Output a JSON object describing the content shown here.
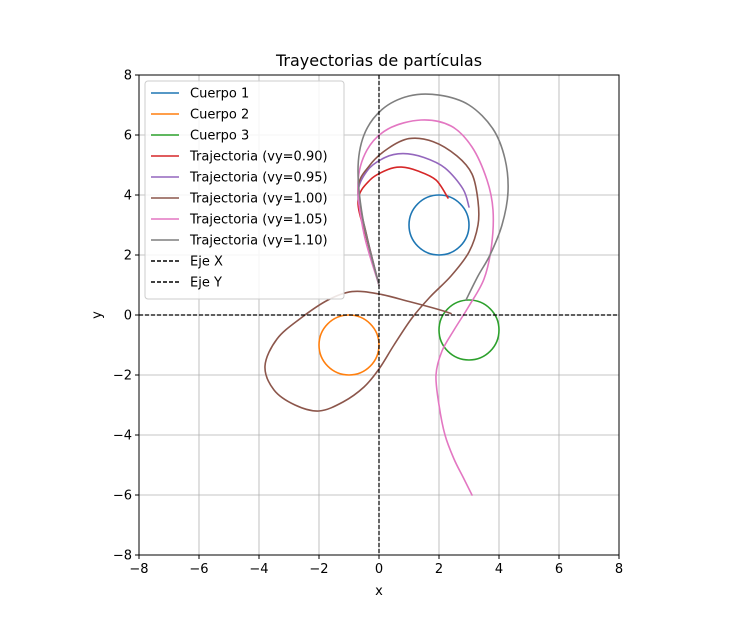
{
  "chart_data": {
    "type": "line",
    "title": "Trayectorias de partículas",
    "xlabel": "x",
    "ylabel": "y",
    "xlim": [
      -8,
      8
    ],
    "ylim": [
      -8,
      8
    ],
    "xticks": [
      "−8",
      "−6",
      "−4",
      "−2",
      "0",
      "2",
      "4",
      "6",
      "8"
    ],
    "yticks": [
      "−8",
      "−6",
      "−4",
      "−2",
      "0",
      "2",
      "4",
      "6",
      "8"
    ],
    "grid": true,
    "legend": "upper-left",
    "bodies": [
      {
        "name": "Cuerpo 1",
        "color": "#1f77b4",
        "center": [
          2,
          3
        ],
        "radius": 1
      },
      {
        "name": "Cuerpo 2",
        "color": "#ff7f0e",
        "center": [
          -1,
          -1
        ],
        "radius": 1
      },
      {
        "name": "Cuerpo 3",
        "color": "#2ca02c",
        "center": [
          3,
          -0.5
        ],
        "radius": 1
      }
    ],
    "series": [
      {
        "name": "Trajectoria (vy=0.90)",
        "color": "#d62728",
        "x": [
          0,
          -0.4,
          -0.7,
          -0.3,
          0.3,
          0.75,
          1.3,
          1.9,
          2.3
        ],
        "y": [
          1.0,
          2.5,
          3.8,
          4.5,
          4.85,
          4.93,
          4.8,
          4.5,
          3.9
        ]
      },
      {
        "name": "Trajectoria (vy=0.95)",
        "color": "#9467bd",
        "x": [
          0,
          -0.4,
          -0.7,
          -0.4,
          0.2,
          0.8,
          1.5,
          2.2,
          2.8,
          3.0
        ],
        "y": [
          1.0,
          2.6,
          4.0,
          4.8,
          5.25,
          5.38,
          5.25,
          4.9,
          4.2,
          3.6
        ]
      },
      {
        "name": "Trajectoria (vy=1.00)",
        "color": "#8c564b",
        "x": [
          0,
          -0.4,
          -0.7,
          -0.3,
          0.3,
          1.0,
          1.8,
          2.6,
          3.1,
          3.3,
          3.3,
          3.0,
          2.4,
          1.7,
          1.1,
          0.5,
          0.0,
          -0.5,
          -1.2,
          -2.0,
          -2.8,
          -3.5,
          -3.8,
          -3.4,
          -2.6,
          -1.7,
          -0.9,
          0,
          1.0,
          2.0,
          2.4
        ],
        "y": [
          1.0,
          2.6,
          4.2,
          5.0,
          5.55,
          5.88,
          5.78,
          5.3,
          4.7,
          3.8,
          3.0,
          2.1,
          1.3,
          0.6,
          -0.1,
          -1.0,
          -1.8,
          -2.4,
          -2.9,
          -3.2,
          -3.0,
          -2.5,
          -1.7,
          -0.8,
          -0.1,
          0.5,
          0.78,
          0.7,
          0.45,
          0.18,
          0.05
        ]
      },
      {
        "name": "Trajectoria (vy=1.05)",
        "color": "#e377c2",
        "x": [
          0,
          -0.5,
          -0.7,
          -0.4,
          0.3,
          1.4,
          2.4,
          3.1,
          3.6,
          3.8,
          3.75,
          3.5,
          3.0,
          2.5,
          2.1,
          1.9,
          2.0,
          2.2,
          2.5,
          2.8,
          3.0,
          3.1
        ],
        "y": [
          1.0,
          2.7,
          4.4,
          5.5,
          6.2,
          6.5,
          6.3,
          5.6,
          4.5,
          3.5,
          2.3,
          1.2,
          0.3,
          -0.5,
          -1.2,
          -2.0,
          -3.0,
          -4.0,
          -4.8,
          -5.4,
          -5.8,
          -6.0
        ]
      },
      {
        "name": "Trajectoria (vy=1.10)",
        "color": "#7f7f7f",
        "x": [
          0,
          -0.5,
          -0.7,
          -0.5,
          0.1,
          1.0,
          2.0,
          3.0,
          3.8,
          4.2,
          4.3,
          4.1,
          3.7,
          3.3,
          2.9
        ],
        "y": [
          1.0,
          3.0,
          4.8,
          6.0,
          6.85,
          7.3,
          7.33,
          7.0,
          6.2,
          5.2,
          4.1,
          3.0,
          2.0,
          1.3,
          0.5
        ]
      }
    ],
    "reference_lines": [
      {
        "name": "Eje X",
        "color": "#000000",
        "style": "dashed",
        "axis": "y",
        "value": 0
      },
      {
        "name": "Eje Y",
        "color": "#000000",
        "style": "dashed",
        "axis": "x",
        "value": 0
      }
    ]
  }
}
